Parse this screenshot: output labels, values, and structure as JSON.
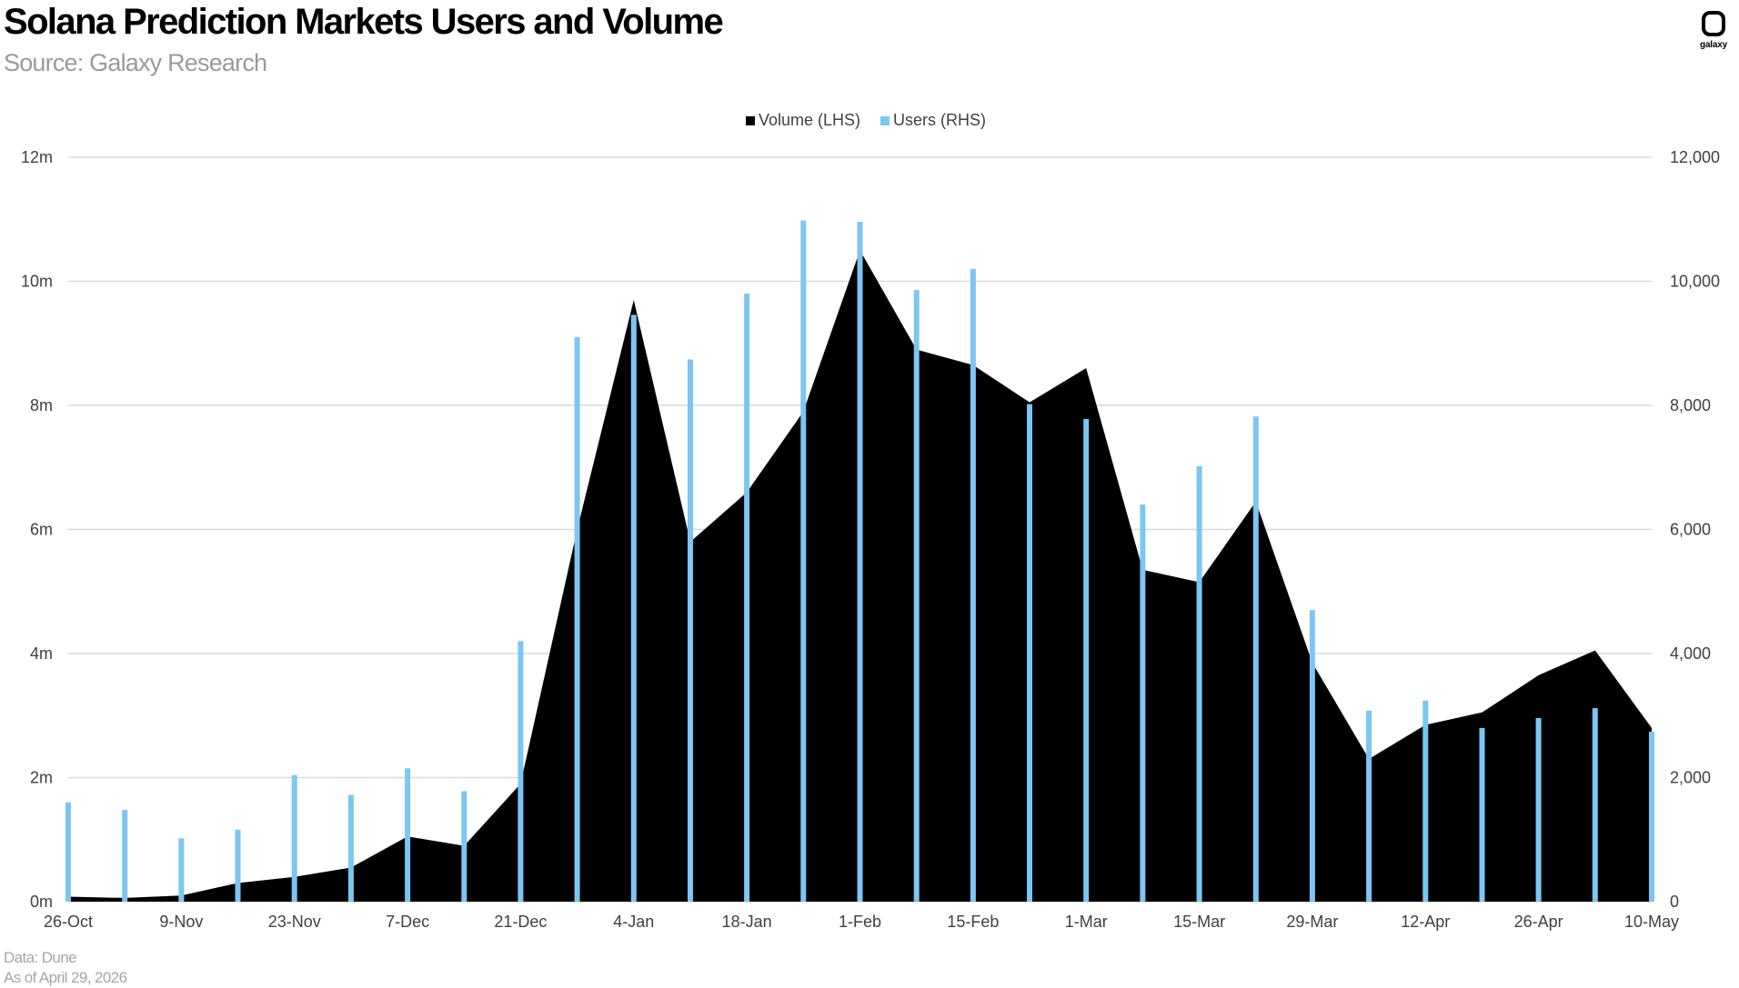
{
  "header": {
    "title": "Solana Prediction Markets Users and Volume",
    "subtitle": "Source: Galaxy Research"
  },
  "logo": {
    "text": "galaxy"
  },
  "legend": {
    "volume_label": "Volume (LHS)",
    "users_label": "Users (RHS)"
  },
  "footer": {
    "data_source": "Data: Dune",
    "as_of": "As of April 29, 2026"
  },
  "colors": {
    "volume": "#000000",
    "users": "#7cc6f1",
    "grid": "#d9d9d9",
    "axis_text": "#404040"
  },
  "chart_data": {
    "type": "area",
    "x_axis": {
      "ticks": [
        "26-Oct",
        "9-Nov",
        "23-Nov",
        "7-Dec",
        "21-Dec",
        "4-Jan",
        "18-Jan",
        "1-Feb",
        "15-Feb",
        "1-Mar",
        "15-Mar",
        "29-Mar",
        "12-Apr",
        "26-Apr",
        "10-May"
      ]
    },
    "y_left": {
      "min": 0,
      "max": 12,
      "step": 2,
      "tick_labels": [
        "0m",
        "2m",
        "4m",
        "6m",
        "8m",
        "10m",
        "12m"
      ]
    },
    "y_right": {
      "min": 0,
      "max": 12000,
      "step": 2000,
      "tick_labels": [
        "0",
        "2,000",
        "4,000",
        "6,000",
        "8,000",
        "10,000",
        "12,000"
      ]
    },
    "grid": "horizontal",
    "legend_position": "top-center",
    "x": [
      "26-Oct",
      "2-Nov",
      "9-Nov",
      "16-Nov",
      "23-Nov",
      "30-Nov",
      "7-Dec",
      "14-Dec",
      "21-Dec",
      "28-Dec",
      "4-Jan",
      "11-Jan",
      "18-Jan",
      "25-Jan",
      "1-Feb",
      "8-Feb",
      "15-Feb",
      "22-Feb",
      "1-Mar",
      "8-Mar",
      "15-Mar",
      "22-Mar",
      "29-Mar",
      "5-Apr",
      "12-Apr",
      "19-Apr",
      "26-Apr",
      "3-May",
      "10-May"
    ],
    "series": [
      {
        "name": "Volume (LHS)",
        "type": "area",
        "axis": "left",
        "values": [
          0.08,
          0.06,
          0.1,
          0.3,
          0.4,
          0.55,
          1.05,
          0.9,
          1.9,
          6.0,
          9.7,
          5.8,
          6.6,
          7.9,
          10.5,
          8.9,
          8.65,
          8.05,
          8.6,
          5.35,
          5.15,
          6.45,
          3.85,
          2.3,
          2.85,
          3.05,
          3.65,
          4.05,
          2.8
        ]
      },
      {
        "name": "Users (RHS)",
        "type": "bar",
        "axis": "right",
        "values": [
          1600,
          1480,
          1020,
          1160,
          2040,
          1720,
          2150,
          1780,
          4200,
          9100,
          9460,
          8740,
          9800,
          10980,
          10960,
          9860,
          10200,
          8020,
          7780,
          6400,
          7020,
          7820,
          4700,
          3080,
          3240,
          2800,
          2960,
          3120,
          2740
        ]
      }
    ]
  }
}
